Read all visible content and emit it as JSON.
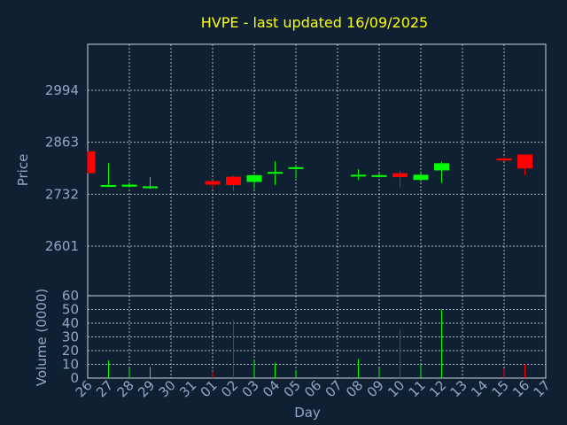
{
  "chart_data": {
    "type": "candlestick",
    "title": "HVPE - last updated 16/09/2025",
    "price_panel": {
      "ylabel": "Price",
      "yticks": [
        2601,
        2732,
        2863,
        2994
      ],
      "ylim": [
        2476,
        3110
      ],
      "grid": true
    },
    "volume_panel": {
      "ylabel": "Volume (0000)",
      "yticks": [
        0,
        10,
        20,
        30,
        40,
        50,
        60
      ],
      "ylim": [
        0,
        60
      ],
      "grid": true
    },
    "xlabel": "Day",
    "x_ticks": [
      "26",
      "27",
      "28",
      "29",
      "30",
      "31",
      "01",
      "02",
      "03",
      "04",
      "05",
      "06",
      "07",
      "08",
      "09",
      "10",
      "11",
      "12",
      "13",
      "14",
      "15",
      "16",
      "17"
    ],
    "colors": {
      "up": "#00ff00",
      "down": "#ff0000"
    },
    "candles": [
      {
        "day": "26",
        "open": 2840,
        "close": 2785,
        "high": 2840,
        "low": 2785,
        "volume": 0
      },
      {
        "day": "27",
        "open": 2752,
        "close": 2755,
        "high": 2810,
        "low": 2750,
        "volume": 13
      },
      {
        "day": "28",
        "open": 2751,
        "close": 2756,
        "high": 2762,
        "low": 2748,
        "volume": 7
      },
      {
        "day": "29",
        "open": 2747,
        "close": 2752,
        "high": 2775,
        "low": 2745,
        "volume": 8
      },
      {
        "day": "01",
        "open": 2765,
        "close": 2756,
        "high": 2768,
        "low": 2745,
        "volume": 5
      },
      {
        "day": "02",
        "open": 2776,
        "close": 2755,
        "high": 2778,
        "low": 2740,
        "volume": 42
      },
      {
        "day": "03",
        "open": 2763,
        "close": 2780,
        "high": 2782,
        "low": 2745,
        "volume": 13
      },
      {
        "day": "04",
        "open": 2784,
        "close": 2788,
        "high": 2815,
        "low": 2755,
        "volume": 11
      },
      {
        "day": "05",
        "open": 2796,
        "close": 2800,
        "high": 2806,
        "low": 2772,
        "volume": 6
      },
      {
        "day": "08",
        "open": 2777,
        "close": 2781,
        "high": 2795,
        "low": 2768,
        "volume": 14
      },
      {
        "day": "09",
        "open": 2776,
        "close": 2780,
        "high": 2785,
        "low": 2774,
        "volume": 7
      },
      {
        "day": "10",
        "open": 2785,
        "close": 2775,
        "high": 2792,
        "low": 2750,
        "volume": 35
      },
      {
        "day": "11",
        "open": 2768,
        "close": 2781,
        "high": 2790,
        "low": 2764,
        "volume": 10
      },
      {
        "day": "12",
        "open": 2792,
        "close": 2810,
        "high": 2814,
        "low": 2760,
        "volume": 50
      },
      {
        "day": "15",
        "open": 2822,
        "close": 2817,
        "high": 2825,
        "low": 2815,
        "volume": 7
      },
      {
        "day": "16",
        "open": 2832,
        "close": 2797,
        "high": 2832,
        "low": 2780,
        "volume": 10
      }
    ]
  }
}
